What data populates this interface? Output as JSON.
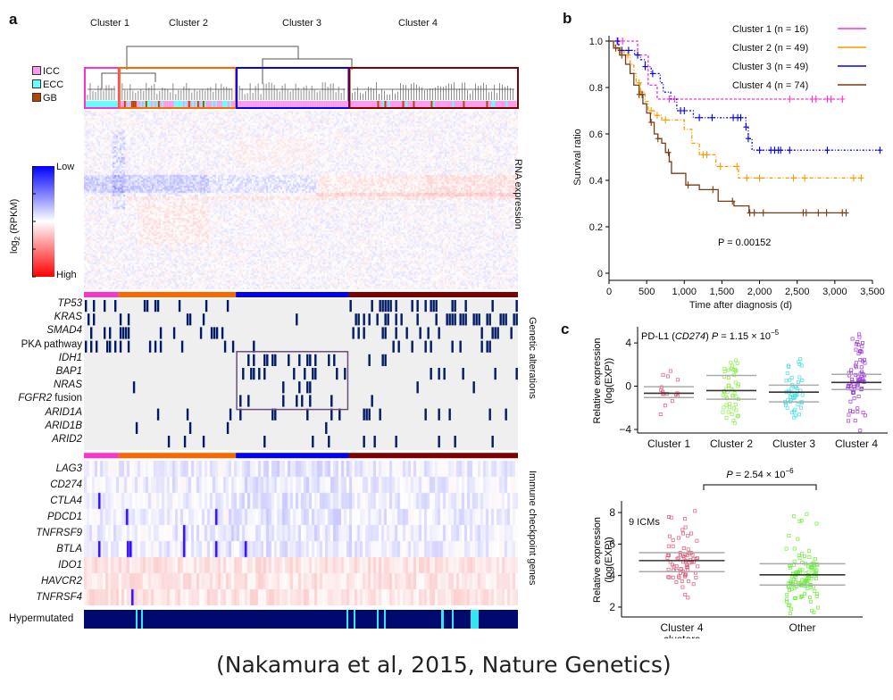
{
  "caption": "(Nakamura et al, 2015, Nature Genetics)",
  "panel_a": {
    "letter": "a",
    "clusters": [
      {
        "label": "Cluster 1",
        "color": "#ff33cc",
        "fraction": 0.08
      },
      {
        "label": "Cluster 2",
        "color": "#ff6600",
        "fraction": 0.27
      },
      {
        "label": "Cluster 3",
        "color": "#0000ff",
        "fraction": 0.26
      },
      {
        "label": "Cluster 4",
        "color": "#800000",
        "fraction": 0.39
      }
    ],
    "subtype_legend": [
      {
        "label": "ICC",
        "color": "#ff99ee"
      },
      {
        "label": "ECC",
        "color": "#66ffff"
      },
      {
        "label": "GB",
        "color": "#b34700"
      }
    ],
    "colorbar": {
      "title": "log2 (RPKM)",
      "low": "Low",
      "high": "High",
      "low_color": "#0000ff",
      "mid_color": "#ffffff",
      "high_color": "#ff0000"
    },
    "section_labels": {
      "rna": "RNA expression",
      "genetic": "Genetic alterations",
      "immune": "Immune checkpoint genes"
    },
    "genetic_alterations": [
      {
        "label": "TP53",
        "italic": true
      },
      {
        "label": "KRAS",
        "italic": true
      },
      {
        "label": "SMAD4",
        "italic": true
      },
      {
        "label": "PKA pathway",
        "italic": false
      },
      {
        "label": "IDH1",
        "italic": true
      },
      {
        "label": "BAP1",
        "italic": true
      },
      {
        "label": "NRAS",
        "italic": true
      },
      {
        "label": "FGFR2",
        "suffix": " fusion",
        "italic": true
      },
      {
        "label": "ARID1A",
        "italic": true
      },
      {
        "label": "ARID1B",
        "italic": true
      },
      {
        "label": "ARID2",
        "italic": true
      }
    ],
    "immune_genes": [
      "LAG3",
      "CD274",
      "CTLA4",
      "PDCD1",
      "TNFRSF9",
      "BTLA",
      "IDO1",
      "HAVCR2",
      "TNFRSF4"
    ],
    "hypermutated_label": "Hypermutated",
    "mutation_color": "#001a66",
    "hypermutated_color": "#000a6e",
    "hypermutated_highlight": "#33e6f0"
  },
  "chart_data": [
    {
      "type": "line",
      "panel": "b",
      "title": "",
      "xlabel": "Time after diagnosis (d)",
      "ylabel": "Survival ratio",
      "xlim": [
        0,
        3500
      ],
      "ylim": [
        0,
        1.0
      ],
      "xticks": [
        "0",
        "500",
        "1,000",
        "1,500",
        "2,000",
        "2,500",
        "3,000",
        "3,500"
      ],
      "yticks": [
        "0",
        "0.2",
        "0.4",
        "0.6",
        "0.8",
        "1.0"
      ],
      "annotation": "P = 0.00152",
      "legend_position": "top-right",
      "series": [
        {
          "name": "Cluster 1 (n = 16)",
          "color": "#ff33cc",
          "steps": [
            [
              0,
              1.0
            ],
            [
              380,
              1.0
            ],
            [
              380,
              0.94
            ],
            [
              520,
              0.94
            ],
            [
              520,
              0.81
            ],
            [
              640,
              0.81
            ],
            [
              640,
              0.75
            ],
            [
              3100,
              0.75
            ]
          ],
          "censor": [
            120,
            180,
            380,
            800,
            870,
            2400,
            2700,
            2750,
            2900,
            2950,
            3100
          ]
        },
        {
          "name": "Cluster 2 (n = 49)",
          "color": "#ff9900",
          "steps": [
            [
              0,
              1.0
            ],
            [
              60,
              0.98
            ],
            [
              120,
              0.96
            ],
            [
              200,
              0.94
            ],
            [
              280,
              0.9
            ],
            [
              330,
              0.86
            ],
            [
              360,
              0.82
            ],
            [
              420,
              0.78
            ],
            [
              480,
              0.74
            ],
            [
              520,
              0.7
            ],
            [
              600,
              0.68
            ],
            [
              700,
              0.66
            ],
            [
              900,
              0.66
            ],
            [
              1000,
              0.62
            ],
            [
              1100,
              0.56
            ],
            [
              1200,
              0.51
            ],
            [
              1400,
              0.51
            ],
            [
              1420,
              0.46
            ],
            [
              1700,
              0.46
            ],
            [
              1720,
              0.41
            ],
            [
              3350,
              0.41
            ]
          ],
          "censor": [
            150,
            250,
            400,
            420,
            560,
            640,
            750,
            1250,
            1300,
            1480,
            1700,
            1830,
            2000,
            2450,
            2600,
            3250,
            3350
          ]
        },
        {
          "name": "Cluster 3 (n = 49)",
          "color": "#0000ff",
          "steps": [
            [
              0,
              1.0
            ],
            [
              130,
              1.0
            ],
            [
              130,
              0.96
            ],
            [
              320,
              0.96
            ],
            [
              340,
              0.94
            ],
            [
              420,
              0.92
            ],
            [
              480,
              0.89
            ],
            [
              560,
              0.86
            ],
            [
              680,
              0.82
            ],
            [
              720,
              0.78
            ],
            [
              820,
              0.75
            ],
            [
              900,
              0.7
            ],
            [
              1100,
              0.7
            ],
            [
              1120,
              0.67
            ],
            [
              1800,
              0.67
            ],
            [
              1820,
              0.63
            ],
            [
              1850,
              0.58
            ],
            [
              1900,
              0.53
            ],
            [
              3600,
              0.53
            ]
          ],
          "censor": [
            110,
            170,
            260,
            380,
            480,
            580,
            950,
            1000,
            1200,
            1370,
            1650,
            1710,
            1750,
            1820,
            1850,
            2000,
            2150,
            2200,
            2250,
            2280,
            2400,
            2900,
            3600
          ]
        },
        {
          "name": "Cluster 4 (n = 74)",
          "color": "#7a3b10",
          "steps": [
            [
              0,
              1.0
            ],
            [
              60,
              0.97
            ],
            [
              140,
              0.94
            ],
            [
              220,
              0.9
            ],
            [
              280,
              0.86
            ],
            [
              330,
              0.81
            ],
            [
              400,
              0.77
            ],
            [
              450,
              0.73
            ],
            [
              500,
              0.69
            ],
            [
              550,
              0.65
            ],
            [
              600,
              0.6
            ],
            [
              650,
              0.58
            ],
            [
              700,
              0.56
            ],
            [
              750,
              0.52
            ],
            [
              800,
              0.48
            ],
            [
              830,
              0.43
            ],
            [
              1000,
              0.43
            ],
            [
              1020,
              0.38
            ],
            [
              1150,
              0.38
            ],
            [
              1200,
              0.36
            ],
            [
              1400,
              0.36
            ],
            [
              1450,
              0.31
            ],
            [
              1650,
              0.31
            ],
            [
              1660,
              0.29
            ],
            [
              1850,
              0.29
            ],
            [
              1860,
              0.26
            ],
            [
              3150,
              0.26
            ]
          ],
          "censor": [
            90,
            170,
            400,
            440,
            560,
            650,
            790,
            1050,
            1380,
            1640,
            1870,
            1930,
            2050,
            2580,
            2620,
            2780,
            2890,
            3100,
            3150
          ]
        }
      ]
    },
    {
      "type": "scatter",
      "panel": "c-top",
      "title": "PD-L1 (CD274) P = 1.15 × 10^-5",
      "title_parts": {
        "gene": "PD-L1 (",
        "italic": "CD274",
        "rest": ") ",
        "p": "P",
        "eq": " = 1.15 × 10",
        "exp": "−5"
      },
      "xlabel": "",
      "ylabel": "Relative expression (log(EXP))",
      "ylabel_lines": [
        "Relative expression",
        "(log(EXP))"
      ],
      "ylim": [
        -4,
        5
      ],
      "yticks": [
        "4",
        "0",
        "−4"
      ],
      "yticks_values": [
        4,
        0,
        -4
      ],
      "categories": [
        "Cluster 1",
        "Cluster 2",
        "Cluster 3",
        "Cluster 4"
      ],
      "colors": [
        "#e05070",
        "#88ee44",
        "#44dddd",
        "#9933dd"
      ],
      "n": [
        16,
        49,
        49,
        74
      ],
      "median": [
        -0.65,
        -0.4,
        -0.55,
        0.35
      ],
      "q1": [
        -1.05,
        -1.2,
        -1.45,
        -0.3
      ],
      "q3": [
        -0.05,
        1.0,
        0.1,
        1.1
      ],
      "min": [
        -2.6,
        -3.4,
        -2.9,
        -4.1
      ],
      "max": [
        1.4,
        2.4,
        2.5,
        4.8
      ]
    },
    {
      "type": "scatter",
      "panel": "c-bottom",
      "title": "9 ICMs",
      "annotation": "P = 2.54 × 10^-6",
      "annotation_parts": {
        "p": "P",
        "eq": " = 2.54 × 10",
        "exp": "−6"
      },
      "ylabel": "Relative expression (log(EXP))",
      "ylabel_lines": [
        "Relative expression",
        "(log(EXP))"
      ],
      "ylim": [
        1.6,
        8.4
      ],
      "yticks": [
        "8",
        "6",
        "4",
        "2"
      ],
      "yticks_values": [
        8,
        6,
        4,
        2
      ],
      "categories": [
        "Cluster 4 clusters",
        "Other"
      ],
      "category_lines": [
        [
          "Cluster 4",
          "clusters"
        ],
        [
          "Other"
        ]
      ],
      "colors": [
        "#e05070",
        "#66ee33"
      ],
      "n": [
        74,
        114
      ],
      "median": [
        4.95,
        4.05
      ],
      "q1": [
        4.25,
        3.4
      ],
      "q3": [
        5.45,
        4.75
      ],
      "min": [
        2.6,
        1.6
      ],
      "max": [
        8.1,
        7.9
      ]
    }
  ]
}
